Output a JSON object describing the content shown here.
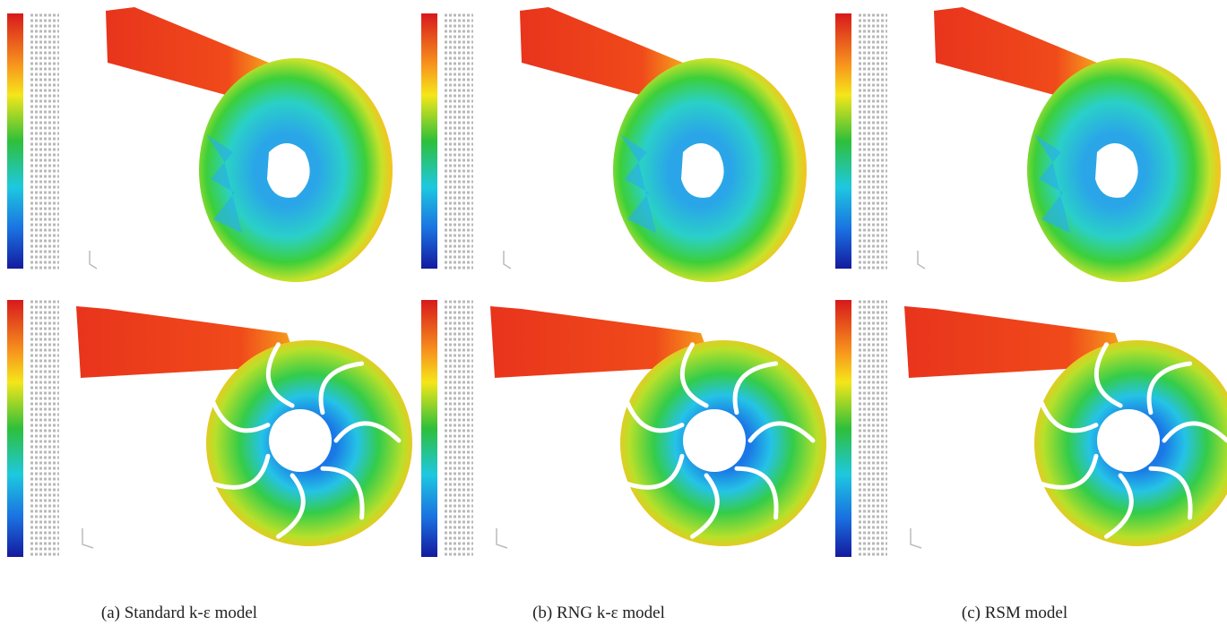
{
  "captions": [
    "(a) Standard k-ε model",
    "(b) RNG k-ε model",
    "(c) RSM model"
  ]
}
